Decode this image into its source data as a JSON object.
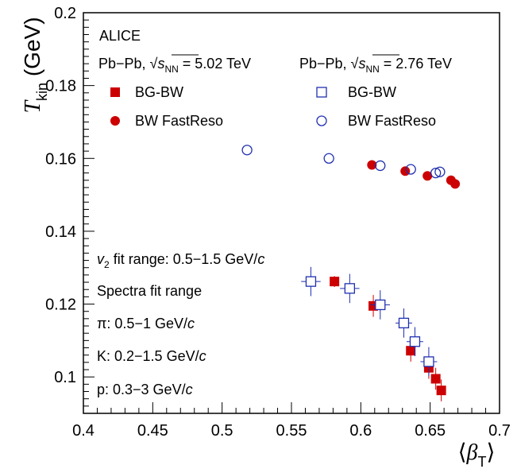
{
  "chart_data": {
    "type": "scatter",
    "xlabel": "⟨β_T⟩",
    "ylabel": "T_kin (GeV)",
    "xlim": [
      0.4,
      0.7
    ],
    "ylim": [
      0.09,
      0.2
    ],
    "xticks": [
      0.4,
      0.45,
      0.5,
      0.55,
      0.6,
      0.65,
      0.7
    ],
    "xtick_labels": [
      "0.4",
      "0.45",
      "0.5",
      "0.55",
      "0.6",
      "0.65",
      "0.7"
    ],
    "yticks": [
      0.1,
      0.12,
      0.14,
      0.16,
      0.18,
      0.2
    ],
    "ytick_labels": [
      "0.1",
      "0.12",
      "0.14",
      "0.16",
      "0.18",
      "0.2"
    ],
    "grid": false,
    "annotations": {
      "experiment": "ALICE",
      "system_502": "Pb−Pb, √sNN = 5.02 TeV",
      "system_276": "Pb−Pb, √sNN = 2.76 TeV",
      "v2_range": "v2 fit range: 0.5−1.5 GeV/c",
      "spectra_title": "Spectra fit range",
      "pion_range": "π: 0.5−1 GeV/c",
      "kaon_range": "K: 0.2−1.5 GeV/c",
      "proton_range": "p: 0.3−3 GeV/c"
    },
    "series": [
      {
        "name": "BG-BW",
        "system": "5.02 TeV",
        "marker": "filled-square",
        "color": "#cc0000",
        "x": [
          0.581,
          0.609,
          0.636,
          0.649,
          0.654,
          0.658
        ],
        "y": [
          0.1262,
          0.1195,
          0.1072,
          0.1025,
          0.0995,
          0.0963
        ],
        "xerr": [
          0.0015,
          0.0015,
          0.0015,
          0.0015,
          0.0015,
          0.0015
        ],
        "yerr": [
          0.0015,
          0.003,
          0.003,
          0.003,
          0.003,
          0.003
        ]
      },
      {
        "name": "BW FastReso",
        "system": "5.02 TeV",
        "marker": "filled-circle",
        "color": "#cc0000",
        "x": [
          0.608,
          0.632,
          0.648,
          0.665,
          0.668
        ],
        "y": [
          0.1582,
          0.1565,
          0.1552,
          0.154,
          0.153
        ],
        "xerr": [
          0,
          0,
          0,
          0,
          0
        ],
        "yerr": [
          0,
          0,
          0,
          0,
          0
        ]
      },
      {
        "name": "BG-BW",
        "system": "2.76 TeV",
        "marker": "open-square",
        "color": "#1f2fb0",
        "x": [
          0.564,
          0.592,
          0.614,
          0.631,
          0.639,
          0.649
        ],
        "y": [
          0.1262,
          0.1243,
          0.1198,
          0.1148,
          0.1097,
          0.1042
        ],
        "xerr": [
          0.007,
          0.007,
          0.007,
          0.006,
          0.006,
          0.006
        ],
        "yerr": [
          0.004,
          0.004,
          0.004,
          0.004,
          0.004,
          0.004
        ]
      },
      {
        "name": "BW FastReso",
        "system": "2.76 TeV",
        "marker": "open-circle",
        "color": "#1f2fb0",
        "x": [
          0.518,
          0.577,
          0.614,
          0.636,
          0.654,
          0.657
        ],
        "y": [
          0.1623,
          0.16,
          0.158,
          0.157,
          0.156,
          0.1563
        ],
        "xerr": [
          0,
          0,
          0,
          0,
          0,
          0
        ],
        "yerr": [
          0,
          0,
          0,
          0,
          0,
          0
        ]
      }
    ]
  }
}
